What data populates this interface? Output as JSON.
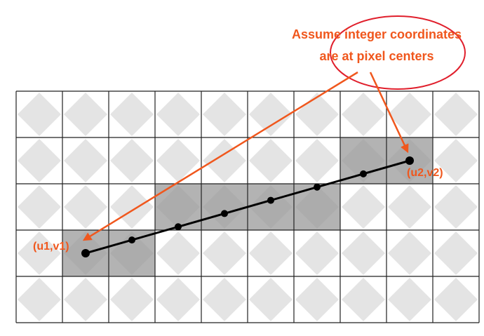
{
  "annotation": {
    "line1": "Assume integer coordinates",
    "line2": "are at pixel centers"
  },
  "endpoints": {
    "start_label": "(u1,v1)",
    "end_label": "(u2,v2)"
  },
  "grid": {
    "columns": 10,
    "rows": 5
  },
  "colors": {
    "accent": "#f0571d",
    "callout_ring": "#e01f2c",
    "line": "#000000",
    "grid_line": "#222222",
    "diamond": "#e4e4e4",
    "highlight": "#9a9a9a"
  },
  "highlighted_cells": [
    {
      "col": 1,
      "row": 3
    },
    {
      "col": 2,
      "row": 3
    },
    {
      "col": 3,
      "row": 2
    },
    {
      "col": 4,
      "row": 2
    },
    {
      "col": 5,
      "row": 2
    },
    {
      "col": 6,
      "row": 2
    },
    {
      "col": 7,
      "row": 1
    },
    {
      "col": 8,
      "row": 1
    }
  ],
  "line_samples": [
    {
      "col": 1,
      "row": 3
    },
    {
      "col": 2,
      "row": 3
    },
    {
      "col": 3,
      "row": 2
    },
    {
      "col": 4,
      "row": 2
    },
    {
      "col": 5,
      "row": 2
    },
    {
      "col": 6,
      "row": 2
    },
    {
      "col": 7,
      "row": 2
    },
    {
      "col": 8,
      "row": 1
    }
  ]
}
